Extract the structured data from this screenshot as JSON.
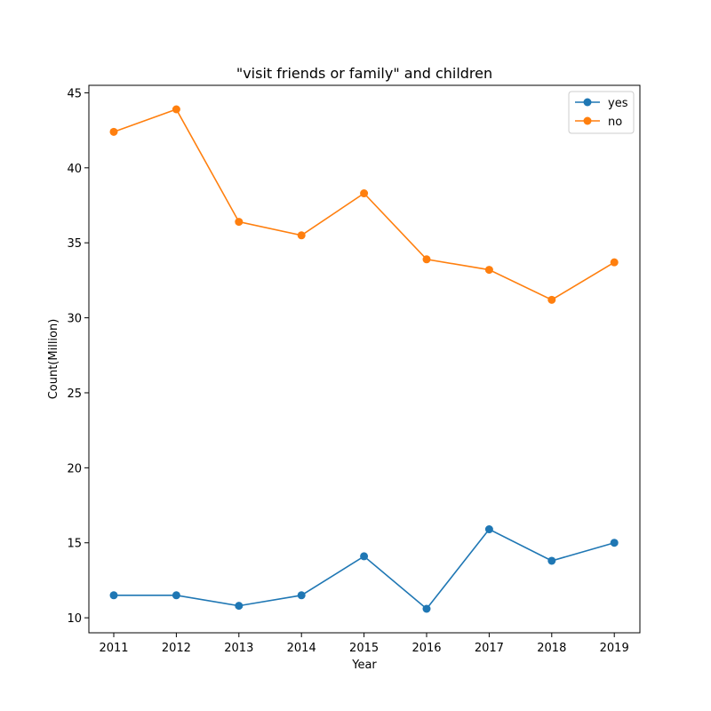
{
  "chart_data": {
    "type": "line",
    "title": "\"visit friends or family\" and children",
    "xlabel": "Year",
    "ylabel": "Count(Million)",
    "x": [
      2011,
      2012,
      2013,
      2014,
      2015,
      2016,
      2017,
      2018,
      2019
    ],
    "x_ticks": [
      "2011",
      "2012",
      "2013",
      "2014",
      "2015",
      "2016",
      "2017",
      "2018",
      "2019"
    ],
    "y_ticks": [
      10,
      15,
      20,
      25,
      30,
      35,
      40,
      45
    ],
    "ylim": [
      9.0,
      45.5
    ],
    "grid": false,
    "legend": "top-right",
    "series": [
      {
        "name": "yes",
        "color": "#1f77b4",
        "values": [
          11.5,
          11.5,
          10.8,
          11.5,
          14.1,
          10.6,
          15.9,
          13.8,
          15.0
        ]
      },
      {
        "name": "no",
        "color": "#ff7f0e",
        "values": [
          42.4,
          43.9,
          36.4,
          35.5,
          38.3,
          33.9,
          33.2,
          31.2,
          33.7
        ]
      }
    ]
  }
}
